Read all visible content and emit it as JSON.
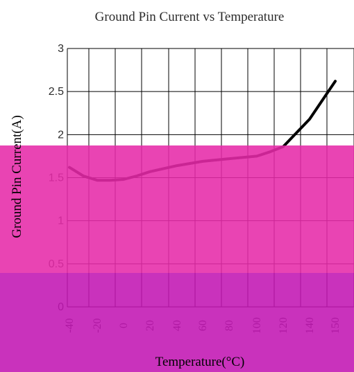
{
  "chart_data": {
    "type": "line",
    "title": "Ground Pin Current vs Temperature",
    "xlabel": "Temperature(°C)",
    "ylabel": "Ground Pin Current(A)",
    "x_ticks": [
      "-40",
      "-20",
      "0",
      "20",
      "40",
      "60",
      "80",
      "100",
      "120",
      "140",
      "150"
    ],
    "y_ticks": [
      "0",
      "0.5",
      "1",
      "1.5",
      "2",
      "2.5",
      "3"
    ],
    "ylim": [
      0,
      3
    ],
    "grid": true,
    "series": [
      {
        "x": [
          -40,
          -30,
          -20,
          -10,
          0,
          10,
          20,
          40,
          60,
          80,
          100,
          110,
          120,
          140,
          150
        ],
        "y": [
          1.62,
          1.52,
          1.47,
          1.47,
          1.48,
          1.52,
          1.57,
          1.64,
          1.69,
          1.72,
          1.75,
          1.8,
          1.86,
          2.18,
          2.62
        ]
      }
    ]
  },
  "colors": {
    "line": "#000000",
    "grid": "#000000",
    "text": "#2b2b2b",
    "band_upper": "#e62aa8",
    "band_lower": "#c116b3"
  }
}
